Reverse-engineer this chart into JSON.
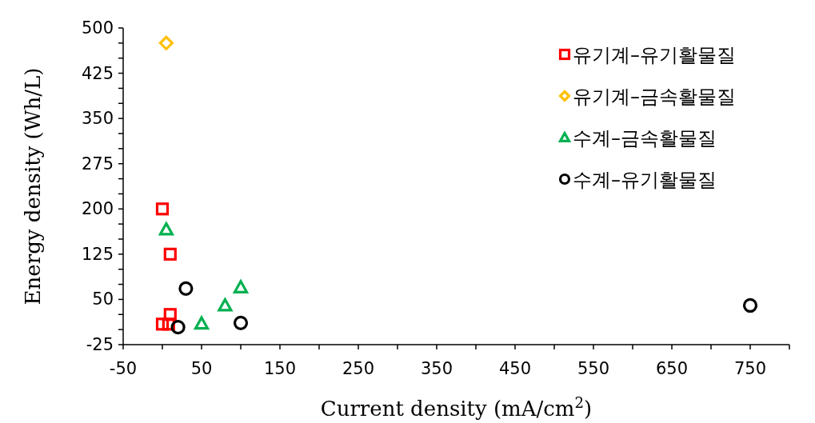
{
  "chart_data": {
    "type": "scatter",
    "xlabel": "Current density (mA/cm$^{2}$)",
    "ylabel": "Energy density  (Wh/L)",
    "xlim": [
      -50,
      800
    ],
    "ylim": [
      -25,
      500
    ],
    "xticks": [
      -50,
      {
        "value": 0,
        "label": null
      },
      50,
      {
        "value": 100,
        "label": null
      },
      150,
      {
        "value": 200,
        "label": null
      },
      250,
      {
        "value": 300,
        "label": null
      },
      350,
      {
        "value": 400,
        "label": null
      },
      450,
      {
        "value": 500,
        "label": null
      },
      550,
      {
        "value": 600,
        "label": null
      },
      650,
      {
        "value": 700,
        "label": null
      },
      750,
      {
        "value": 800,
        "label": null
      }
    ],
    "yticks": [
      -25,
      {
        "value": 0,
        "label": null
      },
      {
        "value": 25,
        "label": null
      },
      50,
      {
        "value": 75,
        "label": null
      },
      {
        "value": 100,
        "label": null
      },
      125,
      {
        "value": 150,
        "label": null
      },
      {
        "value": 175,
        "label": null
      },
      200,
      {
        "value": 225,
        "label": null
      },
      {
        "value": 250,
        "label": null
      },
      275,
      {
        "value": 300,
        "label": null
      },
      {
        "value": 325,
        "label": null
      },
      350,
      {
        "value": 375,
        "label": null
      },
      {
        "value": 400,
        "label": null
      },
      425,
      {
        "value": 450,
        "label": null
      },
      {
        "value": 475,
        "label": null
      },
      500
    ],
    "legend": "top right",
    "series": [
      {
        "name": "유기계–유기활물질",
        "color": "#ff0000",
        "marker": "square",
        "x": [
          0,
          10,
          10,
          0,
          8
        ],
        "values": [
          200,
          125,
          25,
          9,
          9
        ]
      },
      {
        "name": "유기계–금속활물질",
        "color": "#ffc000",
        "marker": "diamond",
        "x": [
          5
        ],
        "values": [
          475
        ]
      },
      {
        "name": "수계–금속활물질",
        "color": "#00b050",
        "marker": "triangle",
        "x": [
          5,
          50,
          80,
          100
        ],
        "values": [
          166,
          10,
          40,
          70
        ]
      },
      {
        "name": "수계–유기활물질",
        "color": "#000000",
        "marker": "circle",
        "x": [
          30,
          20,
          100,
          750
        ],
        "values": [
          68,
          4,
          11,
          40
        ]
      }
    ]
  }
}
